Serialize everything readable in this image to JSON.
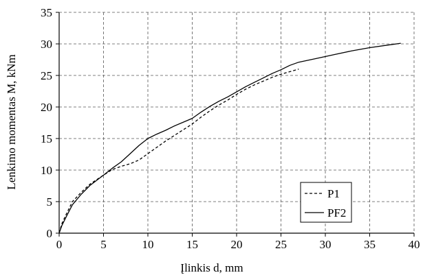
{
  "chart_data": {
    "type": "line",
    "title": "",
    "xlabel": "Įlinkis d, mm",
    "ylabel": "Lenkimo momentas M, kNm",
    "xlim": [
      0,
      40
    ],
    "ylim": [
      0,
      35
    ],
    "x_ticks": [
      0,
      5,
      10,
      15,
      20,
      25,
      30,
      35,
      40
    ],
    "y_ticks": [
      0,
      5,
      10,
      15,
      20,
      25,
      30,
      35
    ],
    "grid": true,
    "legend_position": "bottom-right",
    "series": [
      {
        "name": "P1",
        "style": "dashed",
        "color": "#000000",
        "x": [
          0,
          0.3,
          0.8,
          1.5,
          2.5,
          3.5,
          5,
          6,
          7,
          8,
          9,
          10,
          11,
          12,
          13,
          14,
          15,
          16,
          17,
          18,
          19,
          20,
          21,
          22,
          23,
          24,
          25,
          26,
          27
        ],
        "y": [
          0,
          1.5,
          3,
          5,
          6.5,
          7.8,
          9.2,
          10.1,
          10.6,
          11.0,
          11.6,
          12.6,
          13.6,
          14.6,
          15.5,
          16.4,
          17.3,
          18.4,
          19.4,
          20.3,
          21.1,
          22.0,
          22.8,
          23.5,
          24.1,
          24.7,
          25.2,
          25.6,
          26.0
        ]
      },
      {
        "name": "PF2",
        "style": "solid",
        "color": "#000000",
        "x": [
          0,
          0.3,
          0.8,
          1.5,
          2.5,
          3.5,
          5,
          6,
          7,
          8,
          9,
          10,
          11,
          12,
          13,
          14,
          15,
          16,
          17,
          18,
          19,
          20,
          21,
          22,
          23,
          24,
          25,
          26,
          27,
          29,
          31,
          33,
          35,
          37,
          38.5
        ],
        "y": [
          0,
          1.2,
          2.6,
          4.5,
          6.2,
          7.6,
          9.2,
          10.3,
          11.3,
          12.6,
          13.9,
          15.0,
          15.7,
          16.3,
          17.0,
          17.6,
          18.2,
          19.2,
          20.1,
          20.9,
          21.6,
          22.4,
          23.2,
          23.9,
          24.6,
          25.3,
          25.9,
          26.6,
          27.1,
          27.7,
          28.3,
          28.9,
          29.4,
          29.8,
          30.1
        ]
      }
    ]
  }
}
